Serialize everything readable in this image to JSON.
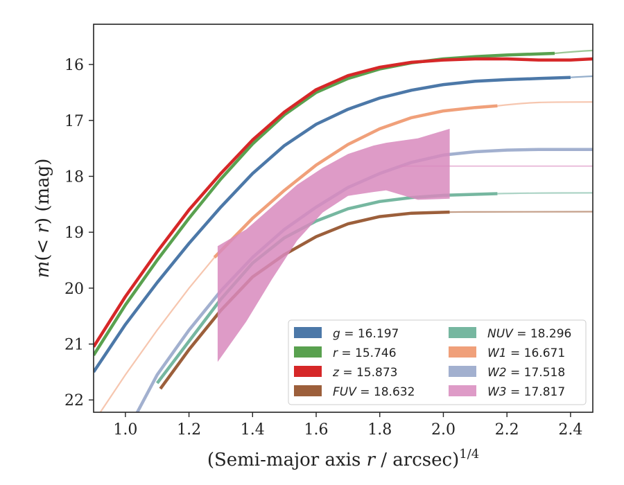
{
  "chart_data": {
    "type": "line",
    "xlabel_main": "(Semi-major axis ",
    "xlabel_var": "r",
    "xlabel_unit": " / arcsec)",
    "xlabel_exp": "1/4",
    "ylabel_main": "m(< ",
    "ylabel_var": "r",
    "ylabel_unit": ") (mag)",
    "xlim": [
      0.9,
      2.47
    ],
    "ylim": [
      22.22,
      15.28
    ],
    "xticks": [
      1.0,
      1.2,
      1.4,
      1.6,
      1.8,
      2.0,
      2.2,
      2.4
    ],
    "xtick_labels": [
      "1.0",
      "1.2",
      "1.4",
      "1.6",
      "1.8",
      "2.0",
      "2.2",
      "2.4"
    ],
    "yticks": [
      16,
      17,
      18,
      19,
      20,
      21,
      22
    ],
    "ytick_labels": [
      "16",
      "17",
      "18",
      "19",
      "20",
      "21",
      "22"
    ],
    "grid": false,
    "legend_position": "lower-right",
    "series": [
      {
        "name": "g",
        "legend_label": "g = 16.197",
        "color": "#4c78a8",
        "asymptote": 16.197,
        "faint_end": 2.47,
        "thick": [
          [
            0.9,
            21.5
          ],
          [
            1.0,
            20.65
          ],
          [
            1.1,
            19.9
          ],
          [
            1.2,
            19.2
          ],
          [
            1.3,
            18.55
          ],
          [
            1.4,
            17.95
          ],
          [
            1.5,
            17.45
          ],
          [
            1.6,
            17.07
          ],
          [
            1.7,
            16.8
          ],
          [
            1.8,
            16.6
          ],
          [
            1.9,
            16.46
          ],
          [
            2.0,
            16.36
          ],
          [
            2.1,
            16.3
          ],
          [
            2.2,
            16.27
          ],
          [
            2.3,
            16.25
          ],
          [
            2.4,
            16.23
          ]
        ]
      },
      {
        "name": "r",
        "legend_label": "r = 15.746",
        "color": "#59a14f",
        "asymptote": 15.746,
        "faint_end": 2.47,
        "thick": [
          [
            0.9,
            21.2
          ],
          [
            1.0,
            20.3
          ],
          [
            1.1,
            19.5
          ],
          [
            1.2,
            18.75
          ],
          [
            1.3,
            18.05
          ],
          [
            1.4,
            17.42
          ],
          [
            1.5,
            16.9
          ],
          [
            1.6,
            16.5
          ],
          [
            1.7,
            16.25
          ],
          [
            1.8,
            16.08
          ],
          [
            1.9,
            15.97
          ],
          [
            2.0,
            15.9
          ],
          [
            2.1,
            15.86
          ],
          [
            2.2,
            15.83
          ],
          [
            2.35,
            15.8
          ]
        ]
      },
      {
        "name": "z",
        "legend_label": "z = 15.873",
        "color": "#d62728",
        "asymptote": 15.873,
        "faint_end": 2.47,
        "thick": [
          [
            0.9,
            21.05
          ],
          [
            1.0,
            20.15
          ],
          [
            1.1,
            19.35
          ],
          [
            1.2,
            18.6
          ],
          [
            1.3,
            17.95
          ],
          [
            1.4,
            17.35
          ],
          [
            1.5,
            16.85
          ],
          [
            1.6,
            16.45
          ],
          [
            1.7,
            16.2
          ],
          [
            1.8,
            16.05
          ],
          [
            1.9,
            15.96
          ],
          [
            2.0,
            15.92
          ],
          [
            2.1,
            15.9
          ],
          [
            2.2,
            15.9
          ],
          [
            2.3,
            15.92
          ],
          [
            2.4,
            15.92
          ],
          [
            2.47,
            15.9
          ]
        ]
      },
      {
        "name": "FUV",
        "legend_label": "FUV = 18.632",
        "color": "#9c5f3b",
        "asymptote": 18.632,
        "faint_end": 2.47,
        "thick": [
          [
            1.11,
            21.8
          ],
          [
            1.2,
            21.1
          ],
          [
            1.3,
            20.4
          ],
          [
            1.4,
            19.8
          ],
          [
            1.5,
            19.4
          ],
          [
            1.6,
            19.08
          ],
          [
            1.7,
            18.85
          ],
          [
            1.8,
            18.72
          ],
          [
            1.9,
            18.66
          ],
          [
            2.02,
            18.64
          ]
        ]
      },
      {
        "name": "NUV",
        "legend_label": "NUV = 18.296",
        "color": "#76b7a0",
        "asymptote": 18.296,
        "faint_end": 2.47,
        "thick": [
          [
            1.1,
            21.7
          ],
          [
            1.2,
            20.95
          ],
          [
            1.3,
            20.2
          ],
          [
            1.4,
            19.55
          ],
          [
            1.5,
            19.1
          ],
          [
            1.6,
            18.8
          ],
          [
            1.7,
            18.58
          ],
          [
            1.8,
            18.45
          ],
          [
            1.9,
            18.38
          ],
          [
            2.0,
            18.34
          ],
          [
            2.17,
            18.31
          ]
        ]
      },
      {
        "name": "W1",
        "legend_label": "W1 = 16.671",
        "color": "#f0a07a",
        "asymptote": 16.671,
        "faint_start": 0.9,
        "faint_end": 2.47,
        "faint_pre": [
          [
            0.9,
            22.4
          ],
          [
            1.0,
            21.55
          ],
          [
            1.1,
            20.75
          ],
          [
            1.2,
            20.0
          ],
          [
            1.28,
            19.45
          ]
        ],
        "thick": [
          [
            1.28,
            19.45
          ],
          [
            1.4,
            18.75
          ],
          [
            1.5,
            18.25
          ],
          [
            1.6,
            17.8
          ],
          [
            1.7,
            17.43
          ],
          [
            1.8,
            17.15
          ],
          [
            1.9,
            16.95
          ],
          [
            2.0,
            16.83
          ],
          [
            2.1,
            16.77
          ],
          [
            2.17,
            16.74
          ]
        ]
      },
      {
        "name": "W2",
        "legend_label": "W2 = 17.518",
        "color": "#a2b0cf",
        "asymptote": 17.518,
        "faint_end": 2.47,
        "thick": [
          [
            1.03,
            22.3
          ],
          [
            1.1,
            21.55
          ],
          [
            1.2,
            20.75
          ],
          [
            1.3,
            20.05
          ],
          [
            1.4,
            19.45
          ],
          [
            1.5,
            18.95
          ],
          [
            1.6,
            18.55
          ],
          [
            1.7,
            18.2
          ],
          [
            1.8,
            17.95
          ],
          [
            1.9,
            17.75
          ],
          [
            2.0,
            17.62
          ],
          [
            2.1,
            17.56
          ],
          [
            2.2,
            17.53
          ],
          [
            2.3,
            17.52
          ],
          [
            2.47,
            17.52
          ]
        ]
      },
      {
        "name": "W3",
        "legend_label": "W3 = 17.817",
        "color": "#d889bd",
        "asymptote": 17.817,
        "faint_end": 2.47,
        "band_upper": [
          [
            1.29,
            19.25
          ],
          [
            1.38,
            18.95
          ],
          [
            1.46,
            18.55
          ],
          [
            1.54,
            18.15
          ],
          [
            1.62,
            17.85
          ],
          [
            1.7,
            17.6
          ],
          [
            1.78,
            17.45
          ],
          [
            1.82,
            17.4
          ],
          [
            1.92,
            17.32
          ],
          [
            2.02,
            17.15
          ]
        ],
        "band_lower": [
          [
            1.29,
            21.32
          ],
          [
            1.38,
            20.6
          ],
          [
            1.46,
            19.85
          ],
          [
            1.54,
            19.15
          ],
          [
            1.62,
            18.65
          ],
          [
            1.7,
            18.35
          ],
          [
            1.78,
            18.28
          ],
          [
            1.82,
            18.25
          ],
          [
            1.92,
            18.42
          ],
          [
            2.02,
            18.4
          ]
        ]
      }
    ]
  }
}
